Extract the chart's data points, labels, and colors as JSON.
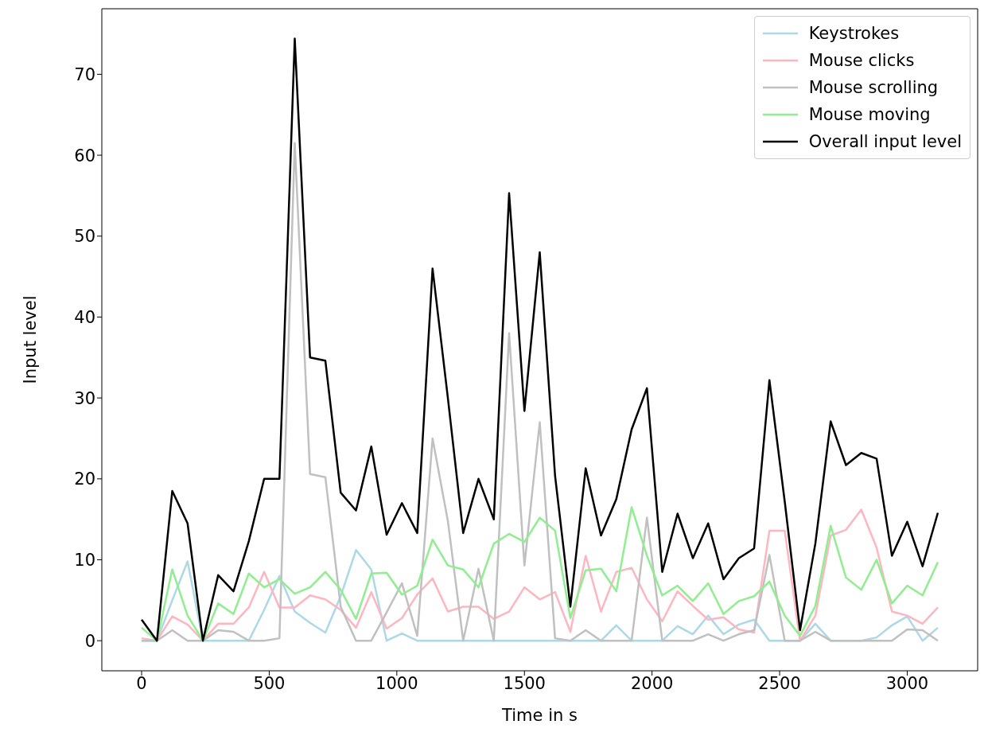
{
  "chart_data": {
    "type": "line",
    "xlabel": "Time in s",
    "ylabel": "Input level",
    "x": [
      0,
      60,
      120,
      180,
      240,
      300,
      360,
      420,
      480,
      540,
      600,
      660,
      720,
      780,
      840,
      900,
      960,
      1020,
      1080,
      1140,
      1200,
      1260,
      1320,
      1380,
      1440,
      1500,
      1560,
      1620,
      1680,
      1740,
      1800,
      1860,
      1920,
      1980,
      2040,
      2100,
      2160,
      2220,
      2280,
      2340,
      2400,
      2460,
      2520,
      2580,
      2640,
      2700,
      2760,
      2820,
      2880,
      2940,
      3000,
      3060,
      3120
    ],
    "series": [
      {
        "name": "Keystrokes",
        "color": "#add8e6",
        "values": [
          0,
          0,
          5,
          9.8,
          0,
          0,
          0,
          0,
          3.8,
          8,
          3.6,
          2.2,
          1,
          5.5,
          11.2,
          8.8,
          0,
          0.9,
          0,
          0,
          0,
          0,
          0,
          0,
          0,
          0,
          0,
          0,
          0,
          0,
          0,
          1.9,
          0,
          0,
          0,
          1.8,
          0.8,
          3.1,
          0.8,
          2,
          2.6,
          0,
          0,
          0,
          2.1,
          0,
          0,
          0,
          0.4,
          1.9,
          3,
          0,
          1.6
        ]
      },
      {
        "name": "Mouse clicks",
        "color": "#ffb6c1",
        "values": [
          0.3,
          0,
          3,
          2,
          0,
          2.1,
          2.1,
          4.1,
          8.5,
          4.1,
          4.1,
          5.6,
          5.1,
          3.8,
          1.6,
          6,
          1.5,
          2.8,
          5.7,
          7.7,
          3.6,
          4.2,
          4.2,
          2.7,
          3.6,
          6.6,
          5.1,
          6,
          1.1,
          10.5,
          3.6,
          8.5,
          9,
          5.1,
          2.4,
          6.1,
          4.3,
          2.6,
          2.9,
          1.4,
          1,
          13.6,
          13.6,
          0,
          3.1,
          13,
          13.7,
          16.2,
          11.5,
          3.6,
          3.1,
          2.1,
          4.1
        ]
      },
      {
        "name": "Mouse scrolling",
        "color": "#c0c0c0",
        "values": [
          0,
          0,
          1.3,
          0,
          0,
          1.3,
          1.1,
          0,
          0,
          0.3,
          61.5,
          20.6,
          20.2,
          4.2,
          0,
          0,
          3.5,
          7.1,
          0.6,
          25,
          14.8,
          0,
          8.9,
          0,
          38,
          9.3,
          27,
          0.3,
          0,
          1.3,
          0,
          0,
          0,
          15.2,
          0,
          0,
          0,
          0.8,
          0,
          0.8,
          1.3,
          10.6,
          0,
          0,
          1.1,
          0,
          0,
          0,
          0,
          0,
          1.4,
          1.3,
          0
        ]
      },
      {
        "name": "Mouse moving",
        "color": "#90ee90",
        "values": [
          1.6,
          0,
          8.8,
          3.1,
          0,
          4.6,
          3.3,
          8.3,
          6.6,
          7.6,
          5.8,
          6.6,
          8.5,
          6.3,
          2.7,
          8.3,
          8.4,
          5.7,
          6.8,
          12.5,
          9.3,
          8.8,
          6.6,
          12,
          13.2,
          12.2,
          15.2,
          13.6,
          2.8,
          8.7,
          8.9,
          6.1,
          16.5,
          10.5,
          5.6,
          6.8,
          4.9,
          7.1,
          3.3,
          4.9,
          5.5,
          7.3,
          3.1,
          0.6,
          4.3,
          14.2,
          7.8,
          6.3,
          10,
          4.6,
          6.8,
          5.6,
          9.7
        ]
      },
      {
        "name": "Overall input level",
        "color": "#000000",
        "values": [
          2.6,
          0,
          18.5,
          14.5,
          0,
          8.1,
          6.1,
          12.3,
          20,
          20,
          74.4,
          35,
          34.6,
          18.3,
          16.1,
          24,
          13.1,
          17,
          13.3,
          46,
          30,
          13.3,
          20,
          15,
          55.3,
          28.4,
          48,
          20.4,
          4.2,
          21.3,
          13,
          17.5,
          26.1,
          31.2,
          8.5,
          15.7,
          10.2,
          14.5,
          7.6,
          10.2,
          11.4,
          32.2,
          17.2,
          1.3,
          12,
          27.1,
          21.7,
          23.2,
          22.5,
          10.5,
          14.7,
          9.2,
          15.8
        ]
      }
    ],
    "xlim": [
      -156,
      3276
    ],
    "ylim": [
      -3.72,
      78.1
    ],
    "xticks": [
      0,
      500,
      1000,
      1500,
      2000,
      2500,
      3000
    ],
    "yticks": [
      0,
      10,
      20,
      30,
      40,
      50,
      60,
      70
    ],
    "legend": "top right"
  }
}
